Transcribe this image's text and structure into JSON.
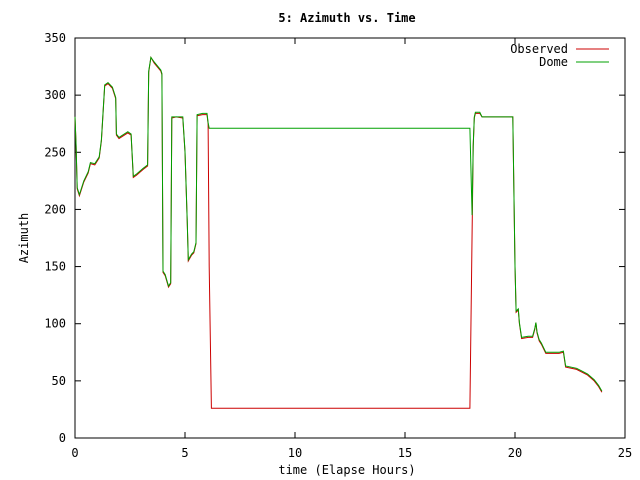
{
  "chart_data": {
    "type": "line",
    "title": "5: Azimuth vs. Time",
    "xlabel": "time (Elapse Hours)",
    "ylabel": "Azimuth",
    "xlim": [
      0,
      25
    ],
    "ylim": [
      0,
      350
    ],
    "xticks": [
      0,
      5,
      10,
      15,
      20,
      25
    ],
    "yticks": [
      0,
      50,
      100,
      150,
      200,
      250,
      300,
      350
    ],
    "grid": false,
    "legend_position": "top-right",
    "series": [
      {
        "name": "Observed",
        "color": "#cc0000",
        "points": [
          [
            0.0,
            281
          ],
          [
            0.05,
            255
          ],
          [
            0.1,
            218
          ],
          [
            0.2,
            212
          ],
          [
            0.4,
            224
          ],
          [
            0.6,
            232
          ],
          [
            0.7,
            240
          ],
          [
            0.9,
            239
          ],
          [
            1.1,
            245
          ],
          [
            1.2,
            260
          ],
          [
            1.35,
            308
          ],
          [
            1.5,
            310
          ],
          [
            1.7,
            306
          ],
          [
            1.85,
            297
          ],
          [
            1.88,
            265
          ],
          [
            2.0,
            262
          ],
          [
            2.4,
            267
          ],
          [
            2.55,
            265
          ],
          [
            2.65,
            228
          ],
          [
            2.8,
            230
          ],
          [
            3.1,
            235
          ],
          [
            3.3,
            238
          ],
          [
            3.35,
            320
          ],
          [
            3.45,
            333
          ],
          [
            3.6,
            328
          ],
          [
            3.9,
            321
          ],
          [
            3.95,
            318
          ],
          [
            4.0,
            145
          ],
          [
            4.1,
            142
          ],
          [
            4.25,
            132
          ],
          [
            4.35,
            135
          ],
          [
            4.4,
            280
          ],
          [
            4.6,
            281
          ],
          [
            4.9,
            280
          ],
          [
            5.0,
            250
          ],
          [
            5.1,
            190
          ],
          [
            5.15,
            155
          ],
          [
            5.3,
            160
          ],
          [
            5.4,
            162
          ],
          [
            5.5,
            170
          ],
          [
            5.55,
            282
          ],
          [
            5.8,
            283
          ],
          [
            6.0,
            283
          ],
          [
            6.05,
            275
          ],
          [
            6.1,
            150
          ],
          [
            6.2,
            26
          ],
          [
            17.95,
            26
          ],
          [
            18.05,
            180
          ],
          [
            18.1,
            255
          ],
          [
            18.15,
            280
          ],
          [
            18.2,
            284
          ],
          [
            18.4,
            284
          ],
          [
            18.5,
            281
          ],
          [
            19.9,
            281
          ],
          [
            20.0,
            150
          ],
          [
            20.05,
            110
          ],
          [
            20.15,
            112
          ],
          [
            20.2,
            100
          ],
          [
            20.3,
            87
          ],
          [
            20.6,
            88
          ],
          [
            20.8,
            88
          ],
          [
            20.9,
            95
          ],
          [
            20.95,
            101
          ],
          [
            21.0,
            92
          ],
          [
            21.1,
            85
          ],
          [
            21.2,
            82
          ],
          [
            21.4,
            74
          ],
          [
            22.0,
            74
          ],
          [
            22.2,
            75
          ],
          [
            22.3,
            62
          ],
          [
            22.8,
            60
          ],
          [
            23.0,
            58
          ],
          [
            23.3,
            55
          ],
          [
            23.6,
            50
          ],
          [
            23.8,
            45
          ],
          [
            23.95,
            40
          ]
        ]
      },
      {
        "name": "Dome",
        "color": "#00a000",
        "points": [
          [
            0.0,
            281
          ],
          [
            0.05,
            256
          ],
          [
            0.1,
            219
          ],
          [
            0.2,
            213
          ],
          [
            0.4,
            225
          ],
          [
            0.6,
            233
          ],
          [
            0.7,
            241
          ],
          [
            0.9,
            240
          ],
          [
            1.1,
            246
          ],
          [
            1.2,
            261
          ],
          [
            1.35,
            309
          ],
          [
            1.5,
            311
          ],
          [
            1.7,
            307
          ],
          [
            1.85,
            298
          ],
          [
            1.88,
            266
          ],
          [
            2.0,
            263
          ],
          [
            2.4,
            268
          ],
          [
            2.55,
            266
          ],
          [
            2.65,
            229
          ],
          [
            2.8,
            231
          ],
          [
            3.1,
            236
          ],
          [
            3.3,
            239
          ],
          [
            3.35,
            321
          ],
          [
            3.45,
            333
          ],
          [
            3.6,
            329
          ],
          [
            3.9,
            322
          ],
          [
            3.95,
            319
          ],
          [
            4.0,
            146
          ],
          [
            4.1,
            143
          ],
          [
            4.25,
            133
          ],
          [
            4.35,
            136
          ],
          [
            4.4,
            281
          ],
          [
            4.6,
            281
          ],
          [
            4.9,
            281
          ],
          [
            5.0,
            251
          ],
          [
            5.1,
            191
          ],
          [
            5.15,
            156
          ],
          [
            5.3,
            161
          ],
          [
            5.4,
            163
          ],
          [
            5.5,
            171
          ],
          [
            5.55,
            283
          ],
          [
            5.8,
            284
          ],
          [
            6.0,
            284
          ],
          [
            6.05,
            276
          ],
          [
            6.1,
            271
          ],
          [
            17.95,
            271
          ],
          [
            18.05,
            195
          ],
          [
            18.1,
            256
          ],
          [
            18.15,
            281
          ],
          [
            18.2,
            285
          ],
          [
            18.4,
            285
          ],
          [
            18.5,
            281
          ],
          [
            19.9,
            281
          ],
          [
            20.0,
            151
          ],
          [
            20.05,
            111
          ],
          [
            20.15,
            113
          ],
          [
            20.2,
            101
          ],
          [
            20.3,
            88
          ],
          [
            20.6,
            89
          ],
          [
            20.8,
            89
          ],
          [
            20.9,
            96
          ],
          [
            20.95,
            101
          ],
          [
            21.0,
            93
          ],
          [
            21.1,
            86
          ],
          [
            21.2,
            83
          ],
          [
            21.4,
            75
          ],
          [
            22.0,
            75
          ],
          [
            22.2,
            76
          ],
          [
            22.3,
            63
          ],
          [
            22.8,
            61
          ],
          [
            23.0,
            59
          ],
          [
            23.3,
            56
          ],
          [
            23.6,
            51
          ],
          [
            23.8,
            46
          ],
          [
            23.95,
            41
          ]
        ]
      }
    ]
  }
}
